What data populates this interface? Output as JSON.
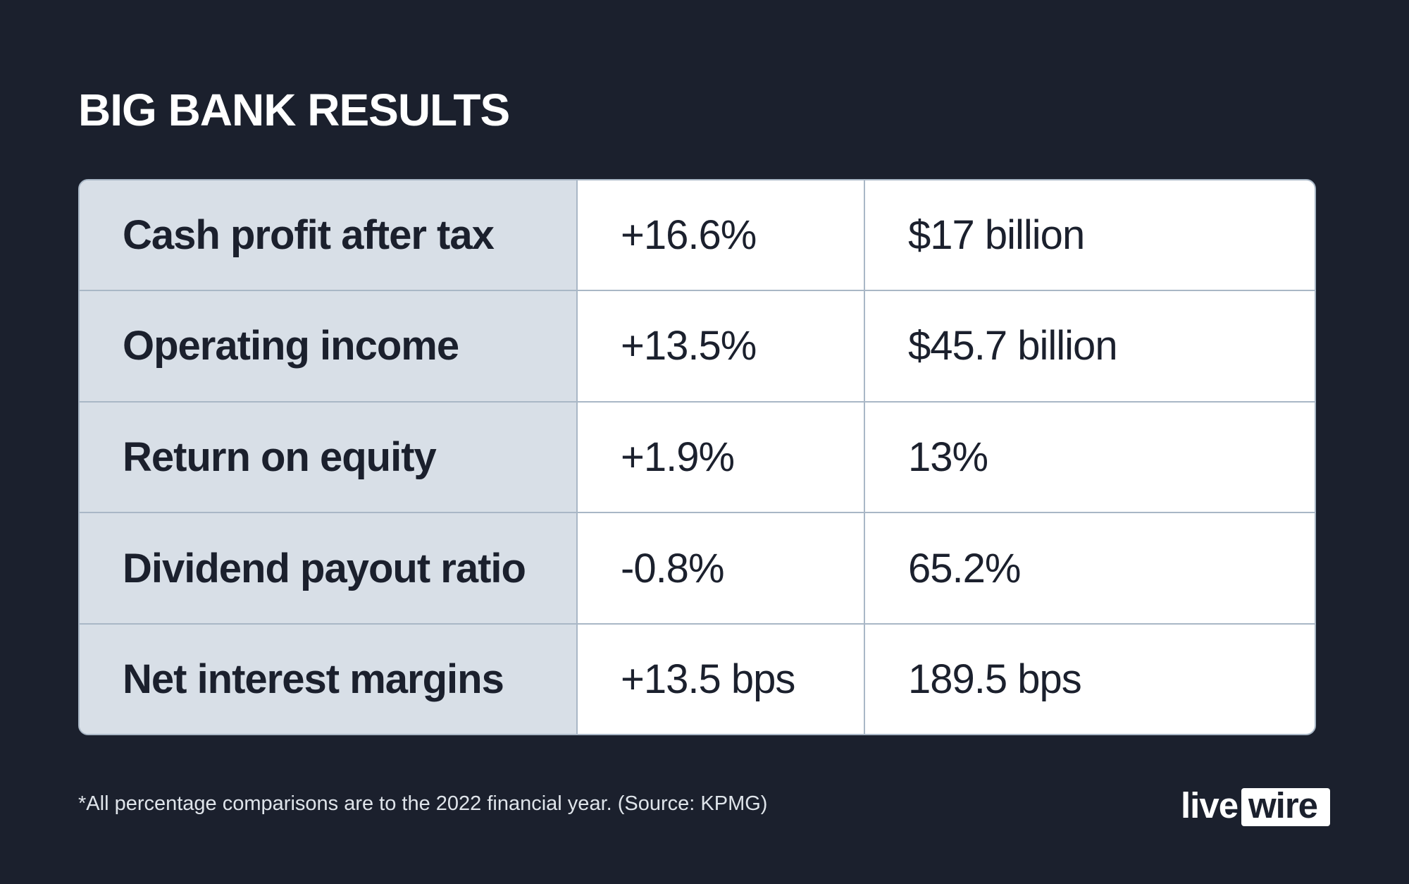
{
  "title": "BIG BANK RESULTS",
  "rows": [
    {
      "metric": "Cash profit after tax",
      "change": "+16.6%",
      "value": "$17 billion"
    },
    {
      "metric": "Operating income",
      "change": "+13.5%",
      "value": "$45.7 billion"
    },
    {
      "metric": "Return on equity",
      "change": "+1.9%",
      "value": "13%"
    },
    {
      "metric": "Dividend payout ratio",
      "change": "-0.8%",
      "value": "65.2%"
    },
    {
      "metric": "Net interest margins",
      "change": "+13.5 bps",
      "value": "189.5 bps"
    }
  ],
  "footnote": "*All percentage comparisons are to the 2022 financial year. (Source: KPMG)",
  "logo": {
    "part1": "live",
    "part2": "wire"
  },
  "colors": {
    "background": "#1b202d",
    "metric_column": "#d8dfe7",
    "table_background": "#ffffff",
    "border": "#a9b7c6",
    "text": "#1b202d"
  }
}
